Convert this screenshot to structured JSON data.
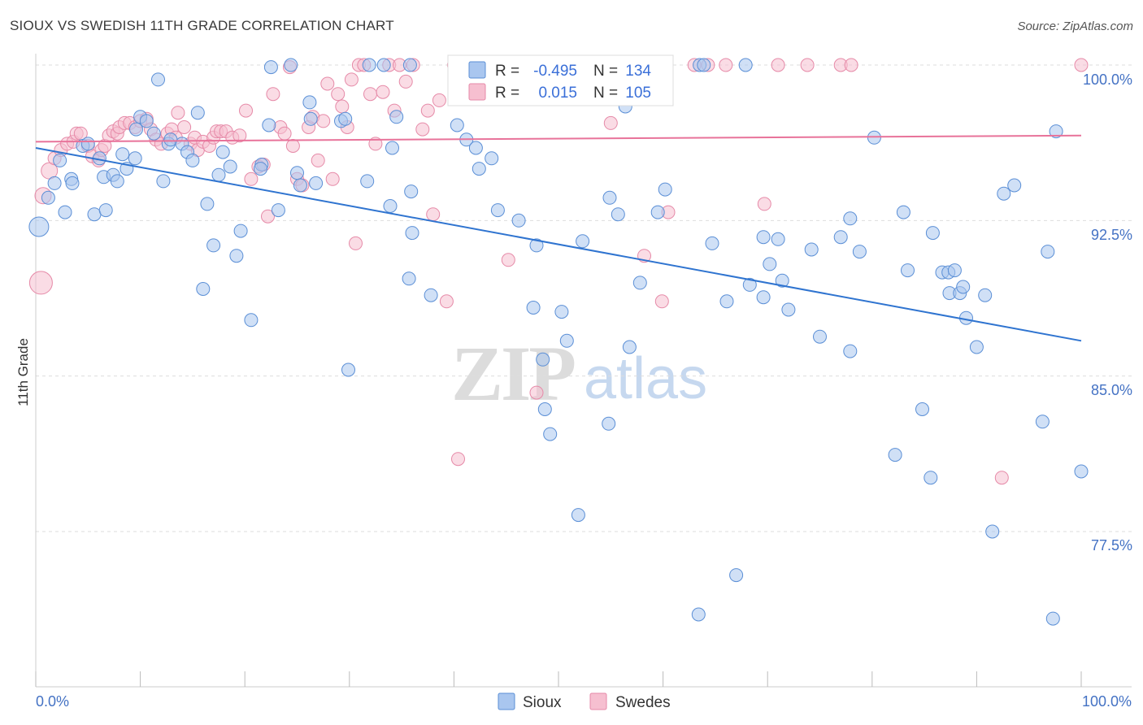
{
  "header": {
    "title": "SIOUX VS SWEDISH 11TH GRADE CORRELATION CHART",
    "source": "Source: ZipAtlas.com"
  },
  "watermark": {
    "zip": "ZIP",
    "atlas": "atlas"
  },
  "colors": {
    "sioux_fill": "#a9c6ef",
    "sioux_stroke": "#5b8fd6",
    "sioux_line": "#2f74d0",
    "swedes_fill": "#f6bfd0",
    "swedes_stroke": "#e68aa8",
    "swedes_line": "#e8739a",
    "grid": "#dddddd",
    "tick_text": "#4472c4"
  },
  "legend_box": {
    "rows": [
      {
        "r_label": "R =",
        "r_value": "-0.495",
        "n_label": "N =",
        "n_value": "134"
      },
      {
        "r_label": "R =",
        "r_value": "0.015",
        "n_label": "N =",
        "n_value": "105"
      }
    ]
  },
  "chart_data": {
    "type": "scatter",
    "title": "SIOUX VS SWEDISH 11TH GRADE CORRELATION CHART",
    "xlabel": "",
    "ylabel": "11th Grade",
    "xlim": [
      0,
      100
    ],
    "ylim": [
      71.8,
      100.8
    ],
    "x_tick_labels": [
      "0.0%",
      "100.0%"
    ],
    "y_ticks": [
      100.0,
      92.5,
      85.0,
      77.5
    ],
    "y_tick_labels": [
      "100.0%",
      "92.5%",
      "85.0%",
      "77.5%"
    ],
    "grid": true,
    "legend_position": "bottom-center",
    "series": [
      {
        "name": "Sioux",
        "r": -0.495,
        "n": 134,
        "trend": {
          "x": [
            0,
            100
          ],
          "y": [
            96.0,
            86.7
          ]
        },
        "points": [
          [
            0.3,
            92.2,
            12
          ],
          [
            1.2,
            93.6,
            8
          ],
          [
            1.8,
            94.3,
            8
          ],
          [
            2.3,
            95.4,
            8
          ],
          [
            2.8,
            92.9,
            8
          ],
          [
            3.4,
            94.5,
            8
          ],
          [
            3.5,
            94.3,
            8
          ],
          [
            4.5,
            96.1,
            8
          ],
          [
            5.0,
            96.2,
            8
          ],
          [
            5.6,
            92.8,
            8
          ],
          [
            6.1,
            95.5,
            8
          ],
          [
            6.5,
            94.6,
            8
          ],
          [
            6.7,
            93.0,
            8
          ],
          [
            7.4,
            94.7,
            8
          ],
          [
            7.8,
            94.4,
            8
          ],
          [
            8.3,
            95.7,
            8
          ],
          [
            8.7,
            95.0,
            8
          ],
          [
            9.5,
            95.5,
            8
          ],
          [
            9.6,
            96.9,
            8
          ],
          [
            10.0,
            97.5,
            8
          ],
          [
            10.6,
            97.3,
            8
          ],
          [
            11.3,
            96.7,
            8
          ],
          [
            11.7,
            99.3,
            8
          ],
          [
            12.2,
            94.4,
            8
          ],
          [
            12.7,
            96.2,
            8
          ],
          [
            12.9,
            96.4,
            8
          ],
          [
            14.0,
            96.2,
            8
          ],
          [
            14.5,
            95.8,
            8
          ],
          [
            15.0,
            95.4,
            8
          ],
          [
            15.5,
            97.7,
            8
          ],
          [
            16.0,
            89.2,
            8
          ],
          [
            16.4,
            93.3,
            8
          ],
          [
            17.0,
            91.3,
            8
          ],
          [
            17.5,
            94.7,
            8
          ],
          [
            17.9,
            95.8,
            8
          ],
          [
            18.6,
            95.1,
            8
          ],
          [
            19.2,
            90.8,
            8
          ],
          [
            19.6,
            92.0,
            8
          ],
          [
            20.6,
            87.7,
            8
          ],
          [
            21.6,
            95.2,
            8
          ],
          [
            21.5,
            95.0,
            8
          ],
          [
            22.3,
            97.1,
            8
          ],
          [
            22.5,
            99.9,
            8
          ],
          [
            23.2,
            93.0,
            8
          ],
          [
            24.4,
            100.0,
            8
          ],
          [
            25.0,
            94.8,
            8
          ],
          [
            25.3,
            94.2,
            8
          ],
          [
            26.3,
            97.4,
            8
          ],
          [
            26.2,
            98.2,
            8
          ],
          [
            26.8,
            94.3,
            8
          ],
          [
            29.2,
            97.3,
            8
          ],
          [
            29.6,
            97.4,
            8
          ],
          [
            29.9,
            85.3,
            8
          ],
          [
            31.7,
            94.4,
            8
          ],
          [
            31.9,
            100.0,
            8
          ],
          [
            33.3,
            100.0,
            8
          ],
          [
            33.9,
            93.2,
            8
          ],
          [
            34.1,
            96.0,
            8
          ],
          [
            34.5,
            97.5,
            8
          ],
          [
            35.7,
            89.7,
            8
          ],
          [
            35.8,
            100.0,
            8
          ],
          [
            35.9,
            93.9,
            8
          ],
          [
            36.0,
            91.9,
            8
          ],
          [
            37.8,
            88.9,
            8
          ],
          [
            40.3,
            97.1,
            8
          ],
          [
            41.2,
            96.4,
            8
          ],
          [
            42.1,
            96.0,
            8
          ],
          [
            42.4,
            95.0,
            8
          ],
          [
            43.6,
            95.5,
            8
          ],
          [
            44.2,
            93.0,
            8
          ],
          [
            46.2,
            92.5,
            8
          ],
          [
            47.6,
            88.3,
            8
          ],
          [
            47.9,
            91.3,
            8
          ],
          [
            48.5,
            85.8,
            8
          ],
          [
            48.7,
            83.4,
            8
          ],
          [
            49.2,
            82.2,
            8
          ],
          [
            50.3,
            88.1,
            8
          ],
          [
            50.8,
            86.7,
            8
          ],
          [
            51.9,
            78.3,
            8
          ],
          [
            52.3,
            91.5,
            8
          ],
          [
            54.8,
            82.7,
            8
          ],
          [
            54.9,
            93.6,
            8
          ],
          [
            55.7,
            92.8,
            8
          ],
          [
            56.4,
            98.0,
            8
          ],
          [
            56.8,
            86.4,
            8
          ],
          [
            57.8,
            89.5,
            8
          ],
          [
            59.5,
            92.9,
            8
          ],
          [
            60.2,
            94.0,
            8
          ],
          [
            63.4,
            73.5,
            8
          ],
          [
            63.5,
            100.0,
            8
          ],
          [
            63.9,
            100.0,
            8
          ],
          [
            64.7,
            91.4,
            8
          ],
          [
            66.1,
            88.6,
            8
          ],
          [
            67.0,
            75.4,
            8
          ],
          [
            67.9,
            100.0,
            8
          ],
          [
            68.3,
            89.4,
            8
          ],
          [
            69.6,
            88.8,
            8
          ],
          [
            69.6,
            91.7,
            8
          ],
          [
            70.2,
            90.4,
            8
          ],
          [
            71.0,
            91.6,
            8
          ],
          [
            71.4,
            89.6,
            8
          ],
          [
            72.0,
            88.2,
            8
          ],
          [
            74.2,
            91.1,
            8
          ],
          [
            75.0,
            86.9,
            8
          ],
          [
            77.0,
            91.7,
            8
          ],
          [
            77.9,
            92.6,
            8
          ],
          [
            77.9,
            86.2,
            8
          ],
          [
            78.8,
            91.0,
            8
          ],
          [
            80.2,
            96.5,
            8
          ],
          [
            82.2,
            81.2,
            8
          ],
          [
            83.0,
            92.9,
            8
          ],
          [
            83.4,
            90.1,
            8
          ],
          [
            84.8,
            83.4,
            8
          ],
          [
            85.6,
            80.1,
            8
          ],
          [
            85.8,
            91.9,
            8
          ],
          [
            86.7,
            90.0,
            8
          ],
          [
            87.3,
            90.0,
            8
          ],
          [
            87.4,
            89.0,
            8
          ],
          [
            87.9,
            90.1,
            8
          ],
          [
            88.4,
            89.0,
            8
          ],
          [
            88.7,
            89.3,
            8
          ],
          [
            89.0,
            87.8,
            8
          ],
          [
            90.0,
            86.4,
            8
          ],
          [
            90.8,
            88.9,
            8
          ],
          [
            91.5,
            77.5,
            8
          ],
          [
            92.6,
            93.8,
            8
          ],
          [
            93.6,
            94.2,
            8
          ],
          [
            96.3,
            82.8,
            8
          ],
          [
            96.8,
            91.0,
            8
          ],
          [
            97.3,
            73.3,
            8
          ],
          [
            97.6,
            96.8,
            8
          ],
          [
            100.0,
            80.4,
            8
          ]
        ]
      },
      {
        "name": "Swedes",
        "r": 0.015,
        "n": 105,
        "trend": {
          "x": [
            0,
            100
          ],
          "y": [
            96.3,
            96.6
          ]
        },
        "points": [
          [
            0.5,
            89.5,
            14
          ],
          [
            0.7,
            93.7,
            10
          ],
          [
            1.3,
            94.9,
            10
          ],
          [
            1.8,
            95.5,
            8
          ],
          [
            2.4,
            95.9,
            8
          ],
          [
            3.0,
            96.2,
            8
          ],
          [
            3.6,
            96.3,
            8
          ],
          [
            3.9,
            96.7,
            8
          ],
          [
            4.3,
            96.7,
            8
          ],
          [
            5.0,
            96.1,
            8
          ],
          [
            5.4,
            95.6,
            8
          ],
          [
            6.0,
            95.4,
            8
          ],
          [
            6.3,
            95.9,
            8
          ],
          [
            6.6,
            96.1,
            8
          ],
          [
            7.0,
            96.6,
            8
          ],
          [
            7.4,
            96.8,
            8
          ],
          [
            7.8,
            96.7,
            8
          ],
          [
            8.0,
            97.0,
            8
          ],
          [
            8.5,
            97.2,
            8
          ],
          [
            9.0,
            97.2,
            8
          ],
          [
            9.5,
            97.0,
            8
          ],
          [
            10.0,
            97.3,
            8
          ],
          [
            10.6,
            97.4,
            8
          ],
          [
            11.0,
            96.9,
            8
          ],
          [
            11.5,
            96.4,
            8
          ],
          [
            12.0,
            96.2,
            8
          ],
          [
            12.6,
            96.7,
            8
          ],
          [
            13.0,
            96.9,
            8
          ],
          [
            13.4,
            96.5,
            8
          ],
          [
            13.6,
            97.7,
            8
          ],
          [
            14.2,
            97.0,
            8
          ],
          [
            14.8,
            96.2,
            8
          ],
          [
            15.2,
            96.5,
            8
          ],
          [
            15.5,
            95.9,
            8
          ],
          [
            16.0,
            96.3,
            8
          ],
          [
            16.6,
            96.1,
            8
          ],
          [
            17.0,
            96.5,
            8
          ],
          [
            17.3,
            96.8,
            8
          ],
          [
            17.7,
            96.8,
            8
          ],
          [
            18.2,
            96.8,
            8
          ],
          [
            18.8,
            96.5,
            8
          ],
          [
            19.5,
            96.6,
            8
          ],
          [
            20.1,
            97.8,
            8
          ],
          [
            20.6,
            94.5,
            8
          ],
          [
            21.3,
            95.1,
            8
          ],
          [
            21.8,
            95.2,
            8
          ],
          [
            22.2,
            92.7,
            8
          ],
          [
            22.7,
            98.6,
            8
          ],
          [
            23.4,
            97.0,
            8
          ],
          [
            23.8,
            96.7,
            8
          ],
          [
            24.3,
            99.9,
            8
          ],
          [
            24.6,
            96.1,
            8
          ],
          [
            25.0,
            94.5,
            8
          ],
          [
            25.5,
            94.2,
            8
          ],
          [
            26.1,
            97.0,
            8
          ],
          [
            26.5,
            97.5,
            8
          ],
          [
            27.0,
            95.4,
            8
          ],
          [
            27.5,
            97.3,
            8
          ],
          [
            27.9,
            99.1,
            8
          ],
          [
            28.4,
            94.5,
            8
          ],
          [
            28.9,
            98.6,
            8
          ],
          [
            29.3,
            98.0,
            8
          ],
          [
            29.8,
            97.0,
            8
          ],
          [
            30.2,
            99.3,
            8
          ],
          [
            30.6,
            91.4,
            8
          ],
          [
            30.9,
            100.0,
            8
          ],
          [
            31.4,
            100.0,
            8
          ],
          [
            32.0,
            98.6,
            8
          ],
          [
            32.5,
            96.2,
            8
          ],
          [
            33.2,
            98.7,
            8
          ],
          [
            33.8,
            100.0,
            8
          ],
          [
            34.3,
            97.8,
            8
          ],
          [
            34.8,
            100.0,
            8
          ],
          [
            35.4,
            99.2,
            8
          ],
          [
            36.1,
            100.0,
            8
          ],
          [
            37.0,
            96.9,
            8
          ],
          [
            37.5,
            97.8,
            8
          ],
          [
            38.0,
            92.8,
            8
          ],
          [
            38.6,
            98.3,
            8
          ],
          [
            39.3,
            88.6,
            8
          ],
          [
            40.0,
            100.0,
            8
          ],
          [
            40.4,
            81.0,
            8
          ],
          [
            42.0,
            100.0,
            8
          ],
          [
            45.2,
            90.6,
            8
          ],
          [
            47.9,
            84.2,
            8
          ],
          [
            50.0,
            100.0,
            8
          ],
          [
            50.5,
            100.0,
            8
          ],
          [
            52.6,
            100.0,
            8
          ],
          [
            53.2,
            100.0,
            8
          ],
          [
            55.0,
            97.2,
            8
          ],
          [
            55.7,
            100.0,
            8
          ],
          [
            56.4,
            100.0,
            8
          ],
          [
            58.2,
            90.8,
            8
          ],
          [
            59.9,
            88.6,
            8
          ],
          [
            60.5,
            92.9,
            8
          ],
          [
            63.0,
            100.0,
            8
          ],
          [
            64.3,
            100.0,
            8
          ],
          [
            66.0,
            100.0,
            8
          ],
          [
            69.7,
            93.3,
            8
          ],
          [
            71.0,
            100.0,
            8
          ],
          [
            73.8,
            100.0,
            8
          ],
          [
            77.0,
            100.0,
            8
          ],
          [
            78.0,
            100.0,
            8
          ],
          [
            92.4,
            80.1,
            8
          ],
          [
            100.0,
            100.0,
            8
          ]
        ]
      }
    ]
  },
  "bottom_legend": {
    "items": [
      {
        "label": "Sioux"
      },
      {
        "label": "Swedes"
      }
    ]
  }
}
